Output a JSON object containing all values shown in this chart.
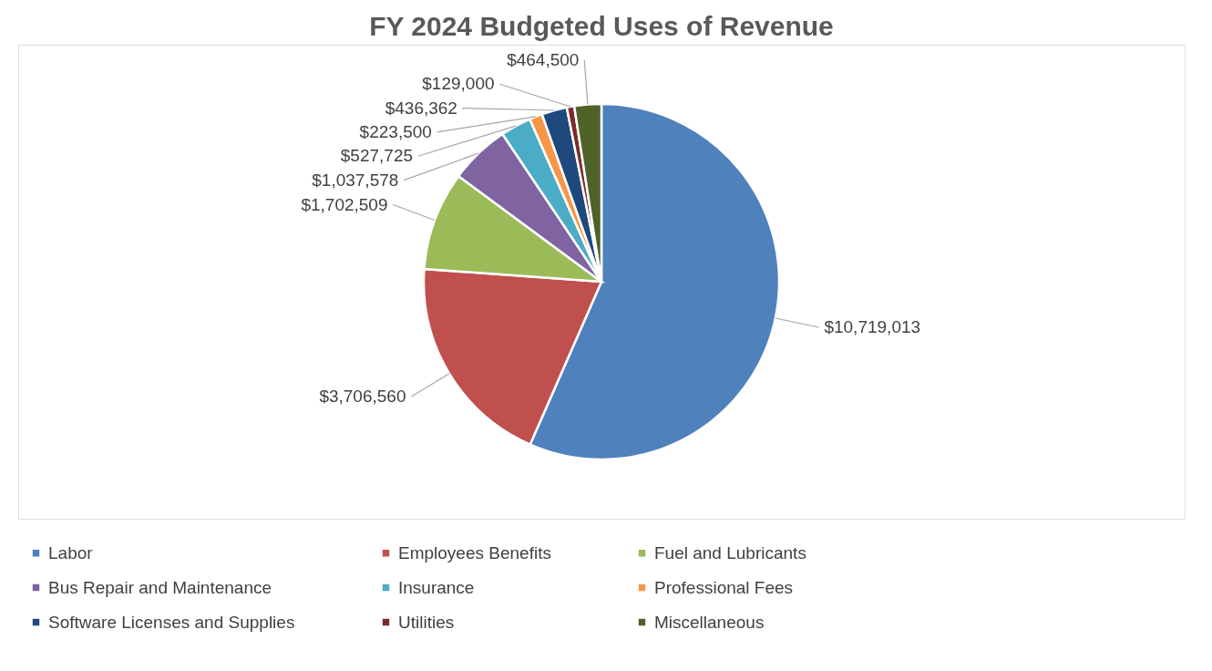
{
  "chart_data": {
    "type": "pie",
    "title": "FY 2024 Budgeted Uses of Revenue",
    "categories": [
      "Labor",
      "Employees Benefits",
      "Fuel and Lubricants",
      "Bus Repair and Maintenance",
      "Insurance",
      "Professional Fees",
      "Software Licenses and Supplies",
      "Utilities",
      "Miscellaneous"
    ],
    "values": [
      10719013,
      3706560,
      1702509,
      1037578,
      527725,
      223500,
      436362,
      129000,
      464500
    ],
    "value_labels": [
      "$10,719,013",
      "$3,706,560",
      "$1,702,509",
      "$1,037,578",
      "$527,725",
      "$223,500",
      "$436,362",
      "$129,000",
      "$464,500"
    ],
    "colors": [
      "#4f81bd",
      "#c0504d",
      "#9bbb59",
      "#8064a2",
      "#4bacc6",
      "#f79646",
      "#1f497d",
      "#7b2c2a",
      "#4f6228"
    ],
    "legend": "bottom"
  }
}
